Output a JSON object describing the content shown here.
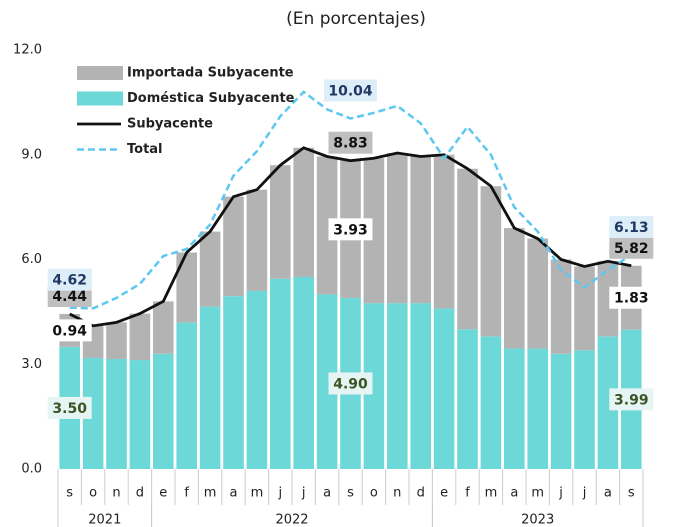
{
  "chart_data": {
    "type": "bar-line",
    "title": "(En porcentajes)",
    "categories": [
      "s",
      "o",
      "n",
      "d",
      "e",
      "f",
      "m",
      "a",
      "m",
      "j",
      "j",
      "a",
      "s",
      "o",
      "n",
      "d",
      "e",
      "f",
      "m",
      "a",
      "m",
      "j",
      "j",
      "a",
      "s"
    ],
    "x_groups": [
      {
        "label": "2021",
        "count": 4
      },
      {
        "label": "2022",
        "count": 12
      },
      {
        "label": "2023",
        "count": 9
      }
    ],
    "ylim": [
      0,
      12
    ],
    "yticks": [
      {
        "value": 0,
        "label": "0.0"
      },
      {
        "value": 3,
        "label": "3.0"
      },
      {
        "value": 6,
        "label": "6.0"
      },
      {
        "value": 9,
        "label": "9.0"
      },
      {
        "value": 12,
        "label": "12.0"
      }
    ],
    "grid": false,
    "legend": "top-left",
    "series": [
      {
        "name": "Importada Subyacente",
        "type": "bar",
        "color": "#b3b3b3",
        "values": [
          0.94,
          0.92,
          1.05,
          1.33,
          1.5,
          2.0,
          2.15,
          2.85,
          2.9,
          3.25,
          3.7,
          3.95,
          3.93,
          4.15,
          4.3,
          4.2,
          4.4,
          4.6,
          4.3,
          3.45,
          3.15,
          2.7,
          2.4,
          2.15,
          1.83
        ],
        "value_labels": [
          "0.94",
          null,
          null,
          null,
          null,
          null,
          null,
          null,
          null,
          null,
          null,
          null,
          "3.93",
          null,
          null,
          null,
          null,
          null,
          null,
          null,
          null,
          null,
          null,
          null,
          "1.83"
        ]
      },
      {
        "name": "Doméstica Subyacente",
        "type": "bar",
        "color": "#6dd8d8",
        "values": [
          3.5,
          3.18,
          3.15,
          3.12,
          3.3,
          4.2,
          4.65,
          4.95,
          5.1,
          5.45,
          5.5,
          5.0,
          4.9,
          4.75,
          4.75,
          4.75,
          4.6,
          4.0,
          3.8,
          3.45,
          3.45,
          3.3,
          3.4,
          3.8,
          3.99
        ],
        "value_labels": [
          "3.50",
          null,
          null,
          null,
          null,
          null,
          null,
          null,
          null,
          null,
          null,
          null,
          "4.90",
          null,
          null,
          null,
          null,
          null,
          null,
          null,
          null,
          null,
          null,
          null,
          "3.99"
        ]
      },
      {
        "name": "Subyacente",
        "type": "line",
        "color": "#111111",
        "values": [
          4.44,
          4.1,
          4.2,
          4.45,
          4.8,
          6.2,
          6.8,
          7.8,
          8.0,
          8.7,
          9.2,
          8.95,
          8.83,
          8.9,
          9.05,
          8.95,
          9.0,
          8.6,
          8.1,
          6.9,
          6.6,
          6.0,
          5.8,
          5.95,
          5.82
        ],
        "value_labels": [
          "4.44",
          null,
          null,
          null,
          null,
          null,
          null,
          null,
          null,
          null,
          null,
          null,
          "8.83",
          null,
          null,
          null,
          null,
          null,
          null,
          null,
          null,
          null,
          null,
          null,
          "5.82"
        ]
      },
      {
        "name": "Total",
        "type": "line",
        "dashed": true,
        "color": "#5cc8f0",
        "values": [
          4.62,
          4.6,
          4.9,
          5.3,
          6.1,
          6.3,
          7.0,
          8.4,
          9.1,
          10.1,
          10.8,
          10.3,
          10.04,
          10.2,
          10.4,
          9.9,
          8.9,
          9.8,
          9.0,
          7.5,
          6.8,
          5.7,
          5.2,
          5.7,
          6.13
        ],
        "value_labels": [
          "4.62",
          null,
          null,
          null,
          null,
          null,
          null,
          null,
          null,
          null,
          null,
          null,
          "10.04",
          null,
          null,
          null,
          null,
          null,
          null,
          null,
          null,
          null,
          null,
          null,
          "6.13"
        ]
      }
    ]
  }
}
